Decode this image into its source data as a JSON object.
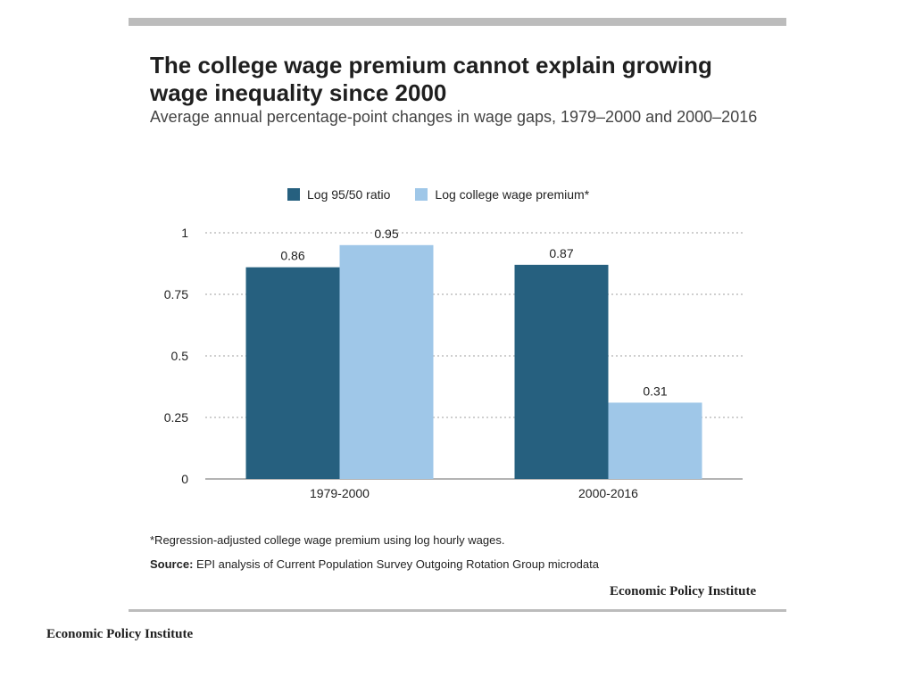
{
  "title": "The college wage premium cannot explain growing wage inequality since 2000",
  "subtitle": "Average annual percentage-point changes in wage gaps, 1979–2000 and 2000–2016",
  "note": "*Regression-adjusted college wage premium using log hourly wages.",
  "source_label": "Source:",
  "source_text": " EPI analysis of Current Population Survey Outgoing Rotation Group microdata",
  "brand": "Economic Policy Institute",
  "colors": {
    "series1": "#26607f",
    "series2": "#9fc7e8",
    "grid": "#cfcfcf",
    "axis": "#9a9a9a"
  },
  "chart_data": {
    "type": "bar",
    "categories": [
      "1979-2000",
      "2000-2016"
    ],
    "series": [
      {
        "name": "Log 95/50 ratio",
        "values": [
          0.86,
          0.87
        ]
      },
      {
        "name": "Log college wage premium*",
        "values": [
          0.95,
          0.31
        ]
      }
    ],
    "value_labels": [
      [
        "0.86",
        "0.87"
      ],
      [
        "0.95",
        "0.31"
      ]
    ],
    "y_ticks": [
      0,
      0.25,
      0.5,
      0.75,
      1
    ],
    "y_tick_labels": [
      "0",
      "0.25",
      "0.5",
      "0.75",
      "1"
    ],
    "ylim": [
      0,
      1
    ],
    "grid": true,
    "legend_position": "top"
  }
}
